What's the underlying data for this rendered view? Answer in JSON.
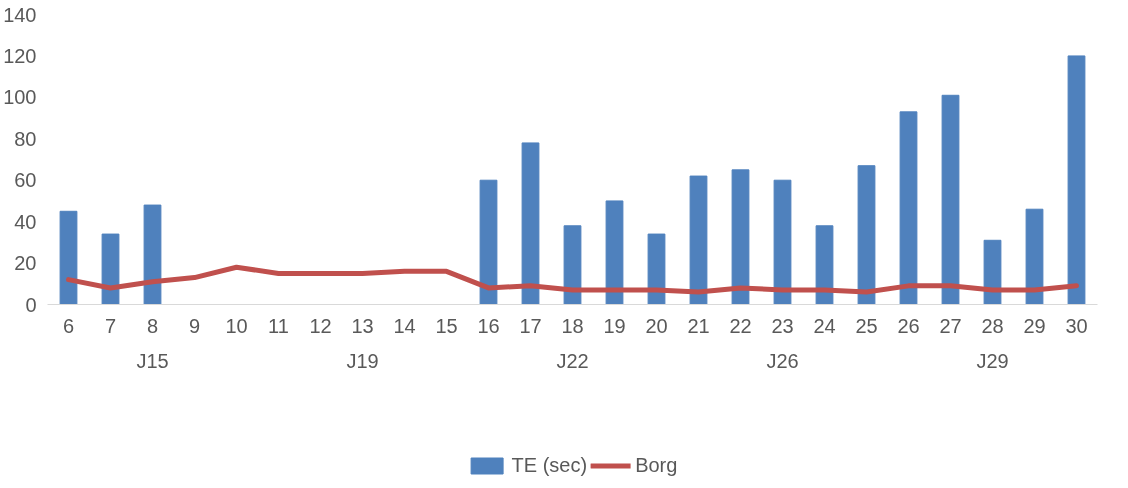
{
  "chart_data": {
    "type": "bar",
    "categories": [
      "6",
      "7",
      "8",
      "9",
      "10",
      "11",
      "12",
      "13",
      "14",
      "15",
      "16",
      "17",
      "18",
      "19",
      "20",
      "21",
      "22",
      "23",
      "24",
      "25",
      "26",
      "27",
      "28",
      "29",
      "30"
    ],
    "series": [
      {
        "name": "TE (sec)",
        "color": "#4f81bd",
        "values": [
          45,
          34,
          48,
          null,
          null,
          null,
          null,
          null,
          null,
          null,
          60,
          78,
          38,
          50,
          34,
          62,
          65,
          60,
          38,
          67,
          93,
          101,
          31,
          46,
          120
        ]
      },
      {
        "name": "Borg",
        "type": "line",
        "color": "#c0504d",
        "values": [
          12,
          8,
          11,
          13,
          18,
          15,
          15,
          15,
          16,
          16,
          8,
          9,
          7,
          7,
          7,
          6,
          8,
          7,
          7,
          6,
          9,
          9,
          7,
          7,
          9
        ]
      }
    ],
    "annotations": [
      "J15",
      "J19",
      "J22",
      "J26",
      "J29"
    ],
    "ylim": [
      0,
      140
    ],
    "yticks": [
      0,
      20,
      40,
      60,
      80,
      100,
      120,
      140
    ],
    "grid": false,
    "legend": "bottom"
  }
}
